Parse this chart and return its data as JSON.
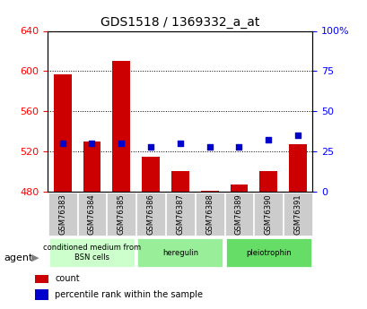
{
  "title": "GDS1518 / 1369332_a_at",
  "categories": [
    "GSM76383",
    "GSM76384",
    "GSM76385",
    "GSM76386",
    "GSM76387",
    "GSM76388",
    "GSM76389",
    "GSM76390",
    "GSM76391"
  ],
  "bar_values": [
    597,
    530,
    610,
    515,
    500,
    481,
    487,
    500,
    527
  ],
  "bar_base": 480,
  "blue_dot_values": [
    30,
    30,
    30,
    28,
    30,
    28,
    28,
    32,
    35
  ],
  "ylim_left": [
    480,
    640
  ],
  "ylim_right": [
    0,
    100
  ],
  "yticks_left": [
    480,
    520,
    560,
    600,
    640
  ],
  "yticks_right": [
    0,
    25,
    50,
    75,
    100
  ],
  "bar_color": "#cc0000",
  "dot_color": "#0000cc",
  "background_color": "#ffffff",
  "plot_bg_color": "#ffffff",
  "grid_color": "#000000",
  "agent_groups": [
    {
      "label": "conditioned medium from\nBSN cells",
      "start": 0,
      "end": 3,
      "color": "#ccffcc"
    },
    {
      "label": "heregulin",
      "start": 3,
      "end": 6,
      "color": "#99ee99"
    },
    {
      "label": "pleiotrophin",
      "start": 6,
      "end": 9,
      "color": "#66dd66"
    }
  ],
  "legend_items": [
    {
      "color": "#cc0000",
      "label": "count"
    },
    {
      "color": "#0000cc",
      "label": "percentile rank within the sample"
    }
  ],
  "tick_label_bg": "#cccccc",
  "agent_label": "agent"
}
